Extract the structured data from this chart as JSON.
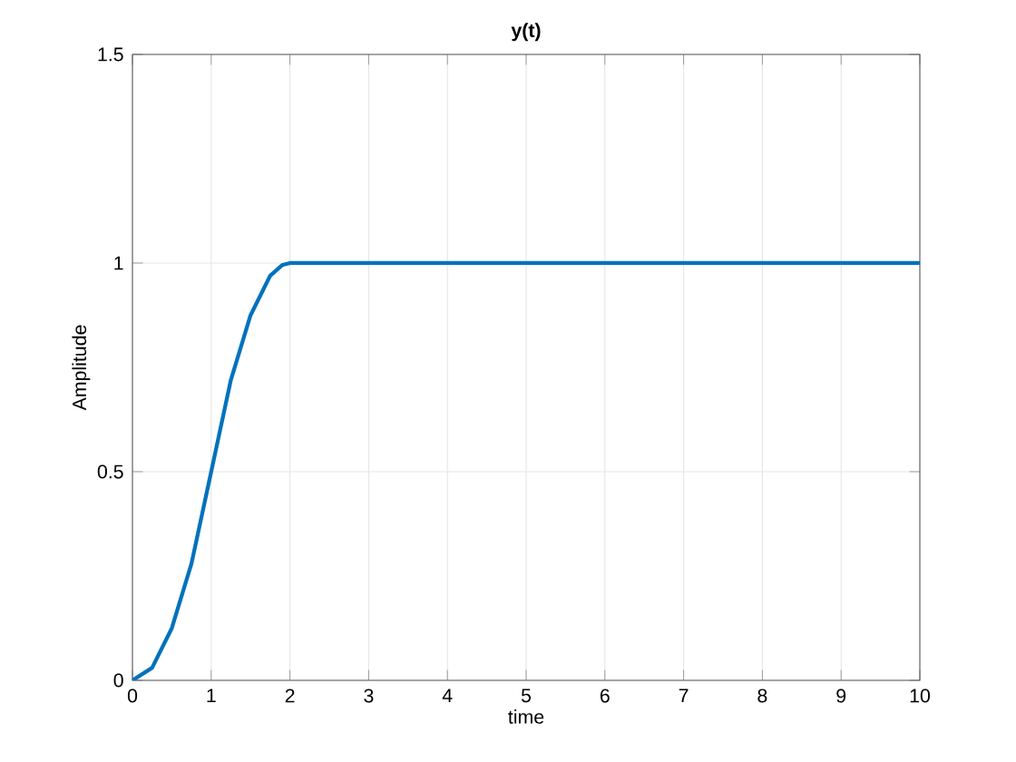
{
  "chart_data": {
    "type": "line",
    "title": "y(t)",
    "xlabel": "time",
    "ylabel": "Amplitude",
    "x": [
      0,
      0.25,
      0.5,
      0.75,
      1,
      1.25,
      1.5,
      1.75,
      1.9,
      2,
      10
    ],
    "series": [
      {
        "color": "#0072bd",
        "values": [
          0,
          0.03,
          0.125,
          0.28,
          0.5,
          0.72,
          0.875,
          0.97,
          0.995,
          1,
          1
        ]
      }
    ],
    "xlim": [
      0,
      10
    ],
    "ylim": [
      0,
      1.5
    ],
    "xticks": [
      0,
      1,
      2,
      3,
      4,
      5,
      6,
      7,
      8,
      9,
      10
    ],
    "yticks": [
      0,
      0.5,
      1,
      1.5
    ],
    "grid": true
  }
}
